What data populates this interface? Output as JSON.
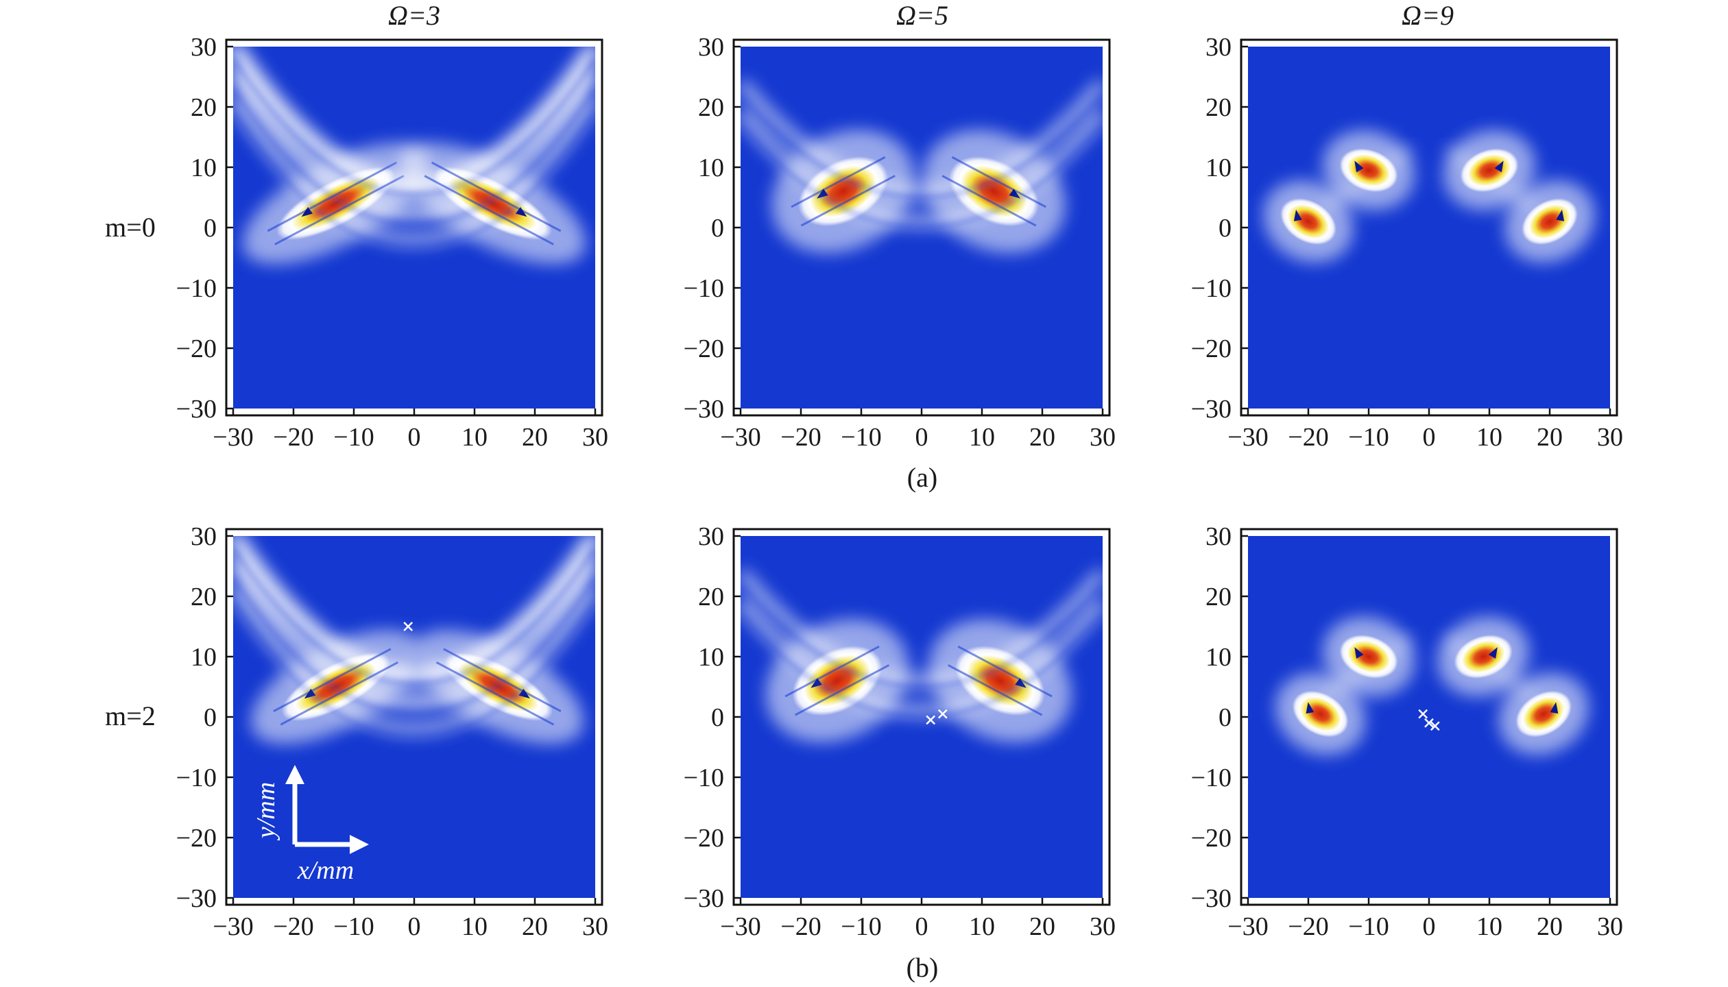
{
  "chart_data": {
    "type": "heatmap",
    "column_titles": [
      "Ω=3",
      "Ω=5",
      "Ω=9"
    ],
    "row_labels": [
      "m=0",
      "m=2"
    ],
    "subfigure_captions": [
      "(a)",
      "(b)"
    ],
    "axes": {
      "xlim": [
        -30,
        30
      ],
      "ylim": [
        -30,
        30
      ],
      "xticks": [
        -30,
        -20,
        -10,
        0,
        10,
        20,
        30
      ],
      "yticks": [
        30,
        20,
        10,
        0,
        -10,
        -20,
        -30
      ],
      "xtick_labels": [
        "−30",
        "−20",
        "−10",
        "0",
        "10",
        "20",
        "30"
      ],
      "ytick_labels": [
        "30",
        "20",
        "10",
        "0",
        "−10",
        "−20",
        "−30"
      ]
    },
    "inset_axis_legend": {
      "x_label": "x/mm",
      "y_label": "y/mm"
    },
    "colors": {
      "background": "#1438d0",
      "low": "#ffffff",
      "mid": "#f2e24a",
      "high": "#d8301a",
      "arrow": "#0a1890",
      "marker": "#ffffff"
    },
    "panels": [
      {
        "row": "m=0",
        "col": "Ω=3",
        "lobes": [
          {
            "x": -13,
            "y": 4,
            "angle": 28,
            "rx": 11,
            "ry": 3.6
          },
          {
            "x": 13,
            "y": 4,
            "angle": -28,
            "rx": 11,
            "ry": 3.6
          }
        ],
        "pattern": "v-band",
        "markers": []
      },
      {
        "row": "m=0",
        "col": "Ω=5",
        "lobes": [
          {
            "x": -13,
            "y": 6,
            "angle": 28,
            "rx": 8,
            "ry": 5
          },
          {
            "x": 12,
            "y": 6,
            "angle": -28,
            "rx": 8,
            "ry": 5
          }
        ],
        "pattern": "two-lobes-split",
        "markers": []
      },
      {
        "row": "m=0",
        "col": "Ω=9",
        "lobes": [
          {
            "x": -10,
            "y": 9.5,
            "angle": -20,
            "rx": 5,
            "ry": 3.4
          },
          {
            "x": 10,
            "y": 9.5,
            "angle": 20,
            "rx": 5,
            "ry": 3.4
          },
          {
            "x": -20,
            "y": 1,
            "angle": -30,
            "rx": 5,
            "ry": 3.4
          },
          {
            "x": 20,
            "y": 1,
            "angle": 30,
            "rx": 5,
            "ry": 3.4
          }
        ],
        "pattern": "four-lobes",
        "markers": []
      },
      {
        "row": "m=2",
        "col": "Ω=3",
        "lobes": [
          {
            "x": -13,
            "y": 5,
            "angle": 28,
            "rx": 10,
            "ry": 3.6
          },
          {
            "x": 14,
            "y": 5,
            "angle": -28,
            "rx": 10,
            "ry": 3.6
          }
        ],
        "pattern": "v-band",
        "markers": [
          {
            "x": -1,
            "y": 15
          }
        ]
      },
      {
        "row": "m=2",
        "col": "Ω=5",
        "lobes": [
          {
            "x": -14,
            "y": 6,
            "angle": 28,
            "rx": 8,
            "ry": 5
          },
          {
            "x": 13,
            "y": 6,
            "angle": -28,
            "rx": 8,
            "ry": 5
          }
        ],
        "pattern": "two-lobes-split",
        "markers": [
          {
            "x": 1.5,
            "y": -0.5
          },
          {
            "x": 3.5,
            "y": 0.5
          }
        ]
      },
      {
        "row": "m=2",
        "col": "Ω=9",
        "lobes": [
          {
            "x": -10,
            "y": 10,
            "angle": -20,
            "rx": 5,
            "ry": 3.4
          },
          {
            "x": 9,
            "y": 10,
            "angle": 20,
            "rx": 5,
            "ry": 3.4
          },
          {
            "x": -18,
            "y": 0.5,
            "angle": -30,
            "rx": 5,
            "ry": 3.4
          },
          {
            "x": 19,
            "y": 0.5,
            "angle": 30,
            "rx": 5,
            "ry": 3.4
          }
        ],
        "pattern": "four-lobes",
        "markers": [
          {
            "x": -1,
            "y": 0.5
          },
          {
            "x": 0,
            "y": -1
          },
          {
            "x": 1,
            "y": -1.5
          }
        ]
      }
    ]
  }
}
